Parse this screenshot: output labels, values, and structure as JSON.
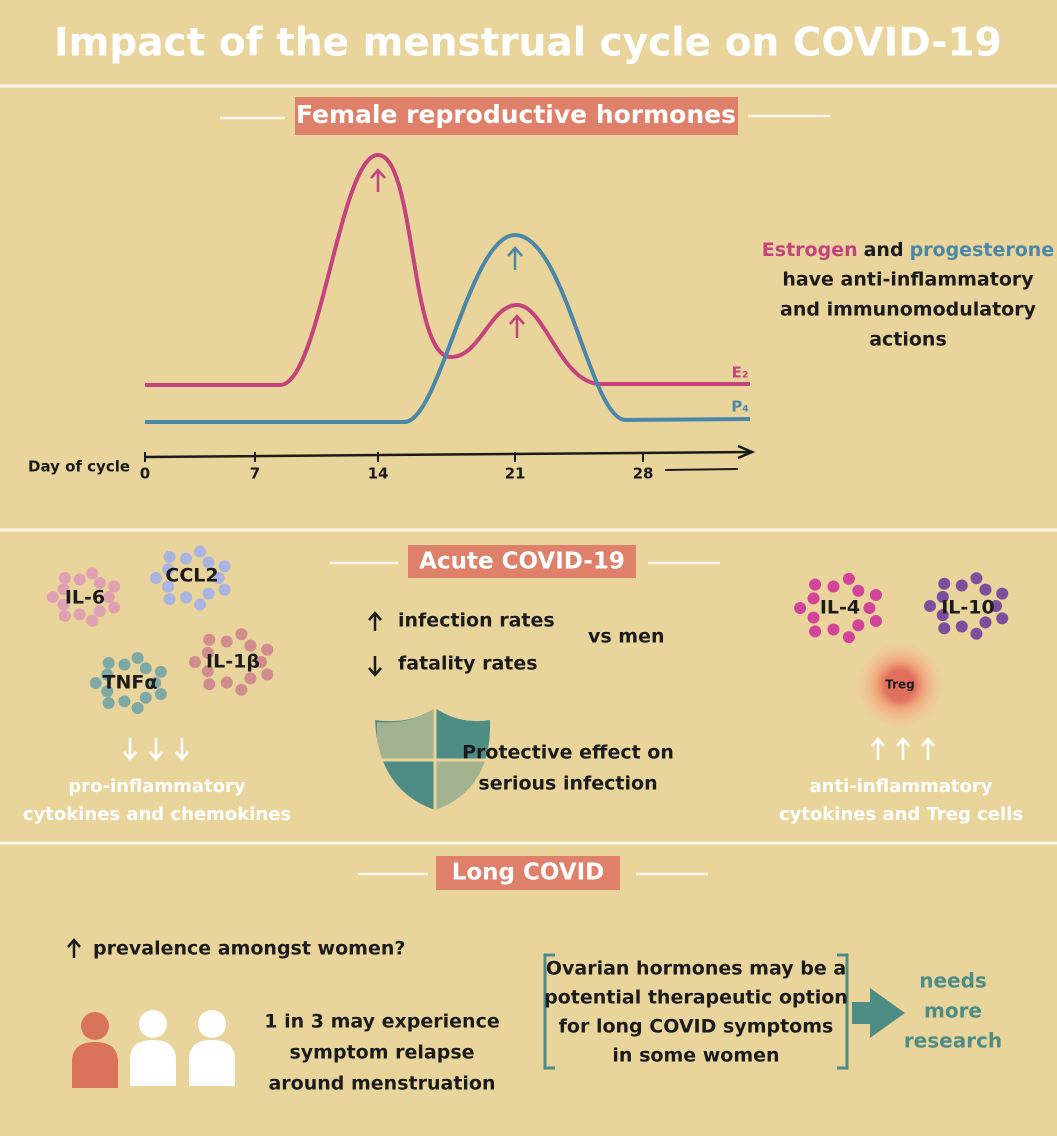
{
  "title": "Impact of the menstrual cycle on COVID-19",
  "hormones": {
    "heading": "Female reproductive hormones",
    "axis_label": "Day of cycle",
    "ticks": [
      "0",
      "7",
      "14",
      "21",
      "28"
    ],
    "curve_labels": [
      "E₂",
      "P₄"
    ],
    "note": {
      "estrogen": "Estrogen",
      "and": "and",
      "progesterone": "progesterone",
      "lines": [
        "have anti-inflammatory",
        "and immunomodulatory",
        "actions"
      ]
    }
  },
  "acute": {
    "heading": "Acute COVID-19",
    "pro_cytokines": [
      "IL-6",
      "CCL2",
      "TNFα",
      "IL-1β"
    ],
    "pro_caption": [
      "pro-inflammatory",
      "cytokines and chemokines"
    ],
    "rates": [
      "infection rates",
      "fatality rates"
    ],
    "vs": "vs men",
    "protective": [
      "Protective effect on",
      "serious infection"
    ],
    "anti_cytokines": [
      "IL-4",
      "IL-10"
    ],
    "treg": "Treg",
    "anti_caption": [
      "anti-inflammatory",
      "cytokines and Treg cells"
    ]
  },
  "long": {
    "heading": "Long COVID",
    "prevalence": "prevalence amongst women?",
    "relapse": [
      "1 in 3 may experience",
      "symptom relapse",
      "around menstruation"
    ],
    "therapy": [
      "Ovarian hormones may be a",
      "potential therapeutic option",
      "for long COVID symptoms",
      "in some women"
    ],
    "research": [
      "needs",
      "more",
      "research"
    ]
  }
}
